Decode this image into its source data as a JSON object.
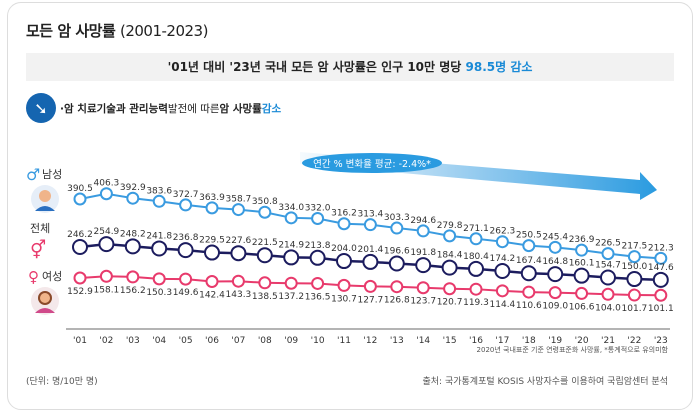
{
  "title": "모든 암 사망률",
  "title_years": "(2001-2023)",
  "banner": {
    "text": "'01년 대비 '23년 국내 모든 암 사망률은 인구 10만 명당 ",
    "highlight": "98.5명 감소"
  },
  "note": {
    "icon": "down-trend-arrow-icon",
    "bold": "·암 치료기술과 관리능력",
    "normal": " 발전에 따른 ",
    "bold2": "암 사망률 ",
    "highlight": "감소"
  },
  "trend_label": "연간 % 변화율 평균: -2.4%*",
  "legend": {
    "male": "남성",
    "total": "전체",
    "female": "여성"
  },
  "colors": {
    "male": "#3a9be0",
    "total": "#1c1c5e",
    "female": "#e83a6c",
    "accent": "#1a8ad6"
  },
  "chart_data": {
    "type": "line",
    "categories": [
      "'01",
      "'02",
      "'03",
      "'04",
      "'05",
      "'06",
      "'07",
      "'08",
      "'09",
      "'10",
      "'11",
      "'12",
      "'13",
      "'14",
      "'15",
      "'16",
      "'17",
      "'18",
      "'19",
      "'20",
      "'21",
      "'22",
      "'23"
    ],
    "series": [
      {
        "name": "남성",
        "values": [
          390.5,
          406.3,
          392.9,
          383.6,
          372.7,
          363.9,
          358.7,
          350.8,
          334.0,
          332.0,
          316.2,
          313.4,
          303.3,
          294.6,
          279.8,
          271.1,
          262.3,
          250.5,
          245.4,
          236.9,
          226.5,
          217.5,
          212.3
        ]
      },
      {
        "name": "전체",
        "values": [
          246.2,
          254.9,
          248.2,
          241.8,
          236.8,
          229.5,
          227.6,
          221.5,
          214.9,
          213.8,
          204.0,
          201.4,
          196.6,
          191.8,
          184.4,
          180.4,
          174.2,
          167.4,
          164.8,
          160.1,
          154.7,
          150.0,
          147.6
        ]
      },
      {
        "name": "여성",
        "values": [
          152.9,
          158.1,
          156.2,
          150.3,
          149.6,
          142.4,
          143.3,
          138.5,
          137.2,
          136.5,
          130.7,
          127.7,
          126.8,
          123.7,
          120.7,
          119.3,
          114.4,
          110.6,
          109.0,
          106.6,
          104.0,
          101.7,
          101.1
        ]
      }
    ],
    "grid": false
  },
  "footnote": "2020년 국내표준 기준 연령표준화 사망률, *통계적으로 유의미함",
  "unit": "(단위: 명/10만 명)",
  "source": "출처: 국가통계포털 KOSIS 사망자수를 이용하여 국립암센터 분석"
}
